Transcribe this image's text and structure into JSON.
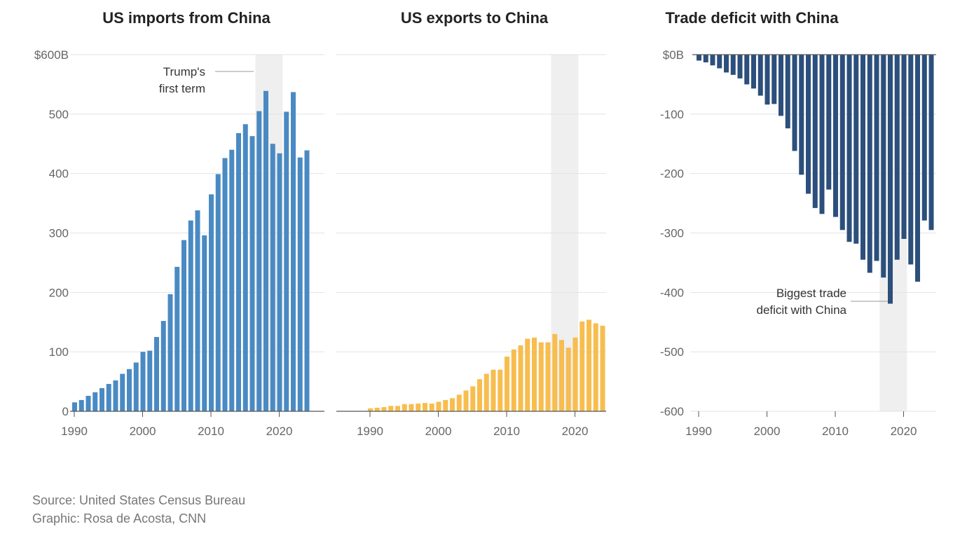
{
  "colors": {
    "imports": "#4a8ac3",
    "exports": "#f7bd4e",
    "deficit": "#2c4f7c",
    "shade": "#efefef",
    "grid": "#e2e2e2",
    "axis": "#555555",
    "tick_text": "#666666",
    "title_text": "#222222"
  },
  "chart_data": [
    {
      "type": "bar",
      "title": "US imports from China",
      "xlabel": "",
      "ylabel": "",
      "ylim": [
        0,
        600
      ],
      "yticks": [
        0,
        100,
        200,
        300,
        400,
        500,
        600
      ],
      "ytick_labels": [
        "0",
        "100",
        "200",
        "300",
        "400",
        "500",
        "$600B"
      ],
      "xticks": [
        1990,
        2000,
        2010,
        2020
      ],
      "xtick_labels": [
        "1990",
        "2000",
        "2010",
        "2020"
      ],
      "shaded_range": [
        2017,
        2020
      ],
      "annotation": {
        "text_lines": [
          "Trump's",
          "first term"
        ]
      },
      "x": [
        1990,
        1991,
        1992,
        1993,
        1994,
        1995,
        1996,
        1997,
        1998,
        1999,
        2000,
        2001,
        2002,
        2003,
        2004,
        2005,
        2006,
        2007,
        2008,
        2009,
        2010,
        2011,
        2012,
        2013,
        2014,
        2015,
        2016,
        2017,
        2018,
        2019,
        2020,
        2021,
        2022,
        2023,
        2024
      ],
      "values": [
        15,
        19,
        26,
        32,
        39,
        46,
        52,
        63,
        71,
        82,
        100,
        102,
        125,
        152,
        197,
        243,
        288,
        321,
        338,
        296,
        365,
        399,
        426,
        440,
        468,
        483,
        463,
        505,
        539,
        450,
        434,
        504,
        537,
        427,
        439
      ]
    },
    {
      "type": "bar",
      "title": "US exports to China",
      "xlabel": "",
      "ylabel": "",
      "ylim": [
        0,
        600
      ],
      "yticks": [
        0,
        100,
        200,
        300,
        400,
        500,
        600
      ],
      "xticks": [
        1990,
        2000,
        2010,
        2020
      ],
      "xtick_labels": [
        "1990",
        "2000",
        "2010",
        "2020"
      ],
      "shaded_range": [
        2017,
        2020
      ],
      "x": [
        1990,
        1991,
        1992,
        1993,
        1994,
        1995,
        1996,
        1997,
        1998,
        1999,
        2000,
        2001,
        2002,
        2003,
        2004,
        2005,
        2006,
        2007,
        2008,
        2009,
        2010,
        2011,
        2012,
        2013,
        2014,
        2015,
        2016,
        2017,
        2018,
        2019,
        2020,
        2021,
        2022,
        2023,
        2024
      ],
      "values": [
        5,
        6,
        7,
        9,
        9,
        12,
        12,
        13,
        14,
        13,
        16,
        19,
        22,
        28,
        35,
        42,
        54,
        63,
        70,
        70,
        92,
        104,
        111,
        122,
        124,
        116,
        116,
        130,
        120,
        107,
        124,
        151,
        154,
        148,
        144
      ]
    },
    {
      "type": "bar",
      "title": "Trade deficit with China",
      "xlabel": "",
      "ylabel": "",
      "ylim": [
        -600,
        0
      ],
      "yticks": [
        0,
        -100,
        -200,
        -300,
        -400,
        -500,
        -600
      ],
      "ytick_labels": [
        "$0B",
        "-100",
        "-200",
        "-300",
        "-400",
        "-500",
        "-600"
      ],
      "xticks": [
        1990,
        2000,
        2010,
        2020
      ],
      "xtick_labels": [
        "1990",
        "2000",
        "2010",
        "2020"
      ],
      "shaded_range": [
        2017,
        2020
      ],
      "annotation": {
        "text_lines": [
          "Biggest trade",
          "deficit with China"
        ]
      },
      "x": [
        1990,
        1991,
        1992,
        1993,
        1994,
        1995,
        1996,
        1997,
        1998,
        1999,
        2000,
        2001,
        2002,
        2003,
        2004,
        2005,
        2006,
        2007,
        2008,
        2009,
        2010,
        2011,
        2012,
        2013,
        2014,
        2015,
        2016,
        2017,
        2018,
        2019,
        2020,
        2021,
        2022,
        2023,
        2024
      ],
      "values": [
        -10,
        -13,
        -18,
        -23,
        -30,
        -34,
        -40,
        -50,
        -57,
        -69,
        -84,
        -83,
        -103,
        -124,
        -162,
        -202,
        -234,
        -258,
        -268,
        -227,
        -273,
        -295,
        -315,
        -318,
        -345,
        -367,
        -347,
        -375,
        -419,
        -345,
        -310,
        -353,
        -382,
        -279,
        -295
      ]
    }
  ],
  "footer": {
    "source": "Source: United States Census Bureau",
    "credit": "Graphic: Rosa de Acosta, CNN"
  }
}
